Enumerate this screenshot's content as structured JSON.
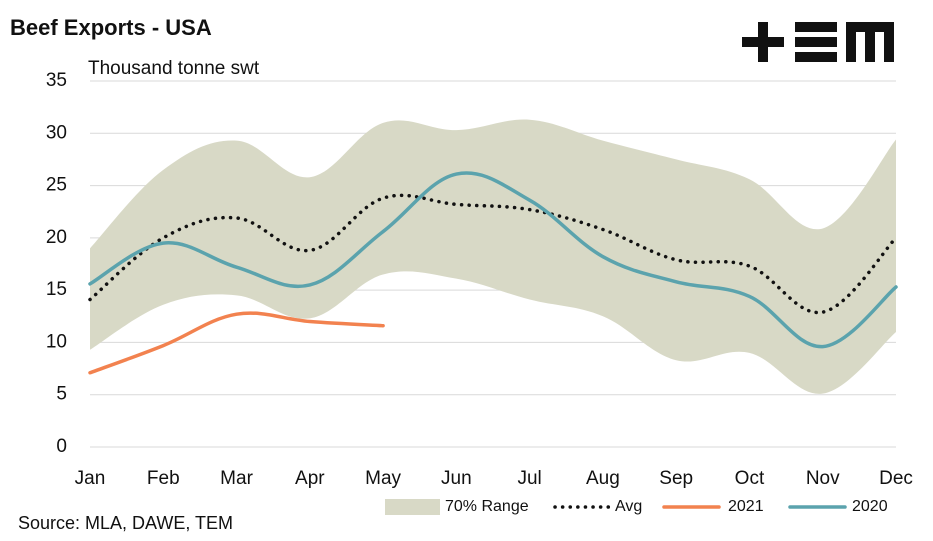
{
  "chart_data": {
    "type": "line",
    "title": "Beef Exports - USA",
    "subtitle": "Thousand tonne swt",
    "source": "Source: MLA, DAWE, TEM",
    "categories": [
      "Jan",
      "Feb",
      "Mar",
      "Apr",
      "May",
      "Jun",
      "Jul",
      "Aug",
      "Sep",
      "Oct",
      "Nov",
      "Dec"
    ],
    "ylim": [
      0,
      35
    ],
    "yticks": [
      0,
      5,
      10,
      15,
      20,
      25,
      30,
      35
    ],
    "grid": true,
    "band": {
      "name": "70% Range",
      "color": "#d8d9c6",
      "high": [
        19,
        26.5,
        29.3,
        25.8,
        31,
        30.3,
        31.3,
        29.3,
        27.5,
        25.6,
        20.9,
        29.4
      ],
      "low": [
        9.3,
        13.6,
        14.5,
        12.3,
        16.5,
        16.1,
        14.1,
        12.5,
        8.3,
        9,
        5.1,
        11
      ]
    },
    "series": [
      {
        "name": "Avg",
        "color": "#111111",
        "dotted": true,
        "values": [
          14.1,
          20,
          21.9,
          18.8,
          23.8,
          23.2,
          22.7,
          20.8,
          17.9,
          17.3,
          12.9,
          20
        ]
      },
      {
        "name": "2021",
        "color": "#f2824f",
        "values": [
          7.1,
          9.7,
          12.7,
          12,
          11.6,
          null,
          null,
          null,
          null,
          null,
          null,
          null
        ]
      },
      {
        "name": "2020",
        "color": "#5ba3ad",
        "values": [
          15.6,
          19.5,
          17.2,
          15.5,
          20.6,
          26.1,
          23.6,
          18.2,
          15.8,
          14.4,
          9.6,
          15.3
        ]
      }
    ]
  }
}
